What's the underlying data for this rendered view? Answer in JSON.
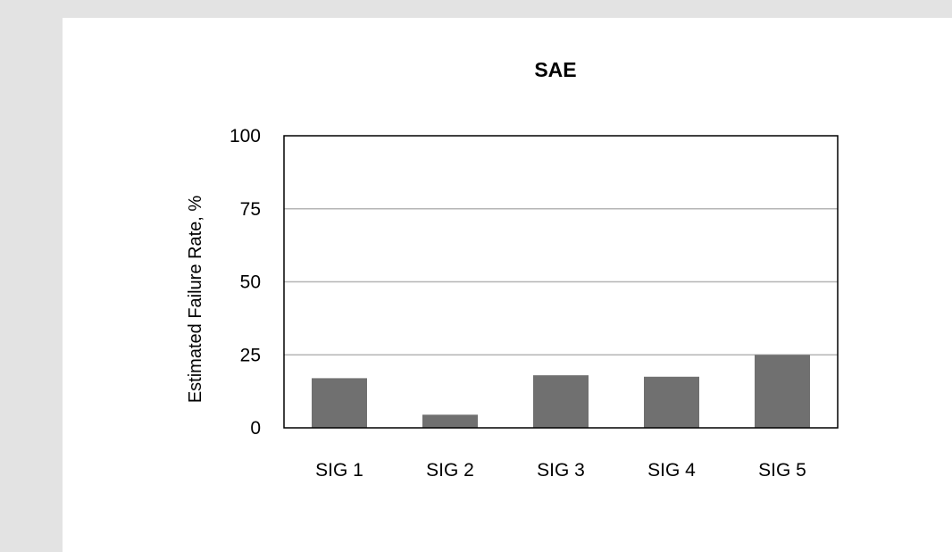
{
  "chart_data": {
    "type": "bar",
    "title": "SAE",
    "ylabel": "Estimated Failure Rate, %",
    "xlabel": "",
    "categories": [
      "SIG 1",
      "SIG 2",
      "SIG 3",
      "SIG 4",
      "SIG 5"
    ],
    "values": [
      17,
      4.5,
      18,
      17.5,
      25
    ],
    "ylim": [
      0,
      100
    ],
    "yticks": [
      0,
      25,
      50,
      75,
      100
    ],
    "grid": true,
    "legend": "none",
    "colors": {
      "bar": "#707070",
      "grid": "#b5b5b5",
      "frame": "#000000",
      "background": "#ffffff",
      "page": "#e3e3e3"
    }
  }
}
